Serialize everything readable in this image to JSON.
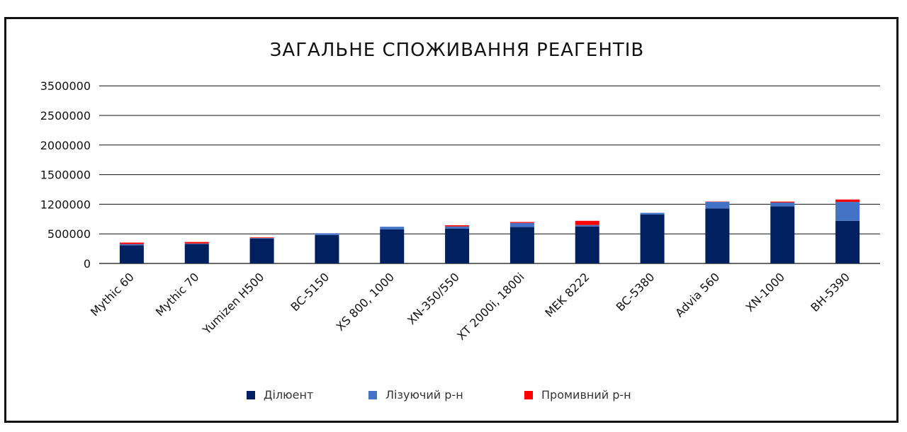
{
  "chart_data": {
    "type": "bar",
    "stacked": true,
    "title": "ЗАГАЛЬНЕ СПОЖИВАННЯ РЕАГЕНТІВ",
    "categories": [
      "Mythic 60",
      "Mythic 70",
      "Yumizen H500",
      "BC-5150",
      "XS 800, 1000",
      "XN-350/550",
      "XT 2000i, 1800i",
      "MEK 8222",
      "BC-5380",
      "Advia 560",
      "XN-1000",
      "BH-5390"
    ],
    "y_tick_labels": [
      "0",
      "500000",
      "1200000",
      "1500000",
      "2000000",
      "2500000",
      "3500000"
    ],
    "series": [
      {
        "name": "Ділюент",
        "color": "#002060",
        "values": [
          0.615,
          0.655,
          0.84,
          0.96,
          1.15,
          1.18,
          1.23,
          1.25,
          1.65,
          1.86,
          1.93,
          1.44
        ]
      },
      {
        "name": "Лізуючий р-н",
        "color": "#4472C4",
        "values": [
          0.04,
          0.02,
          0.02,
          0.06,
          0.09,
          0.07,
          0.14,
          0.05,
          0.06,
          0.22,
          0.13,
          0.64
        ]
      },
      {
        "name": "Промивний р-н",
        "color": "#FF0000",
        "values": [
          0.05,
          0.05,
          0.02,
          0.0,
          0.0,
          0.04,
          0.03,
          0.14,
          0.0,
          0.01,
          0.03,
          0.08
        ]
      }
    ],
    "value_scale_note": "values expressed in tick-index units (one unit per labelled gridline step)",
    "ylim": [
      0,
      6
    ],
    "legend_position": "bottom",
    "grid": true
  }
}
